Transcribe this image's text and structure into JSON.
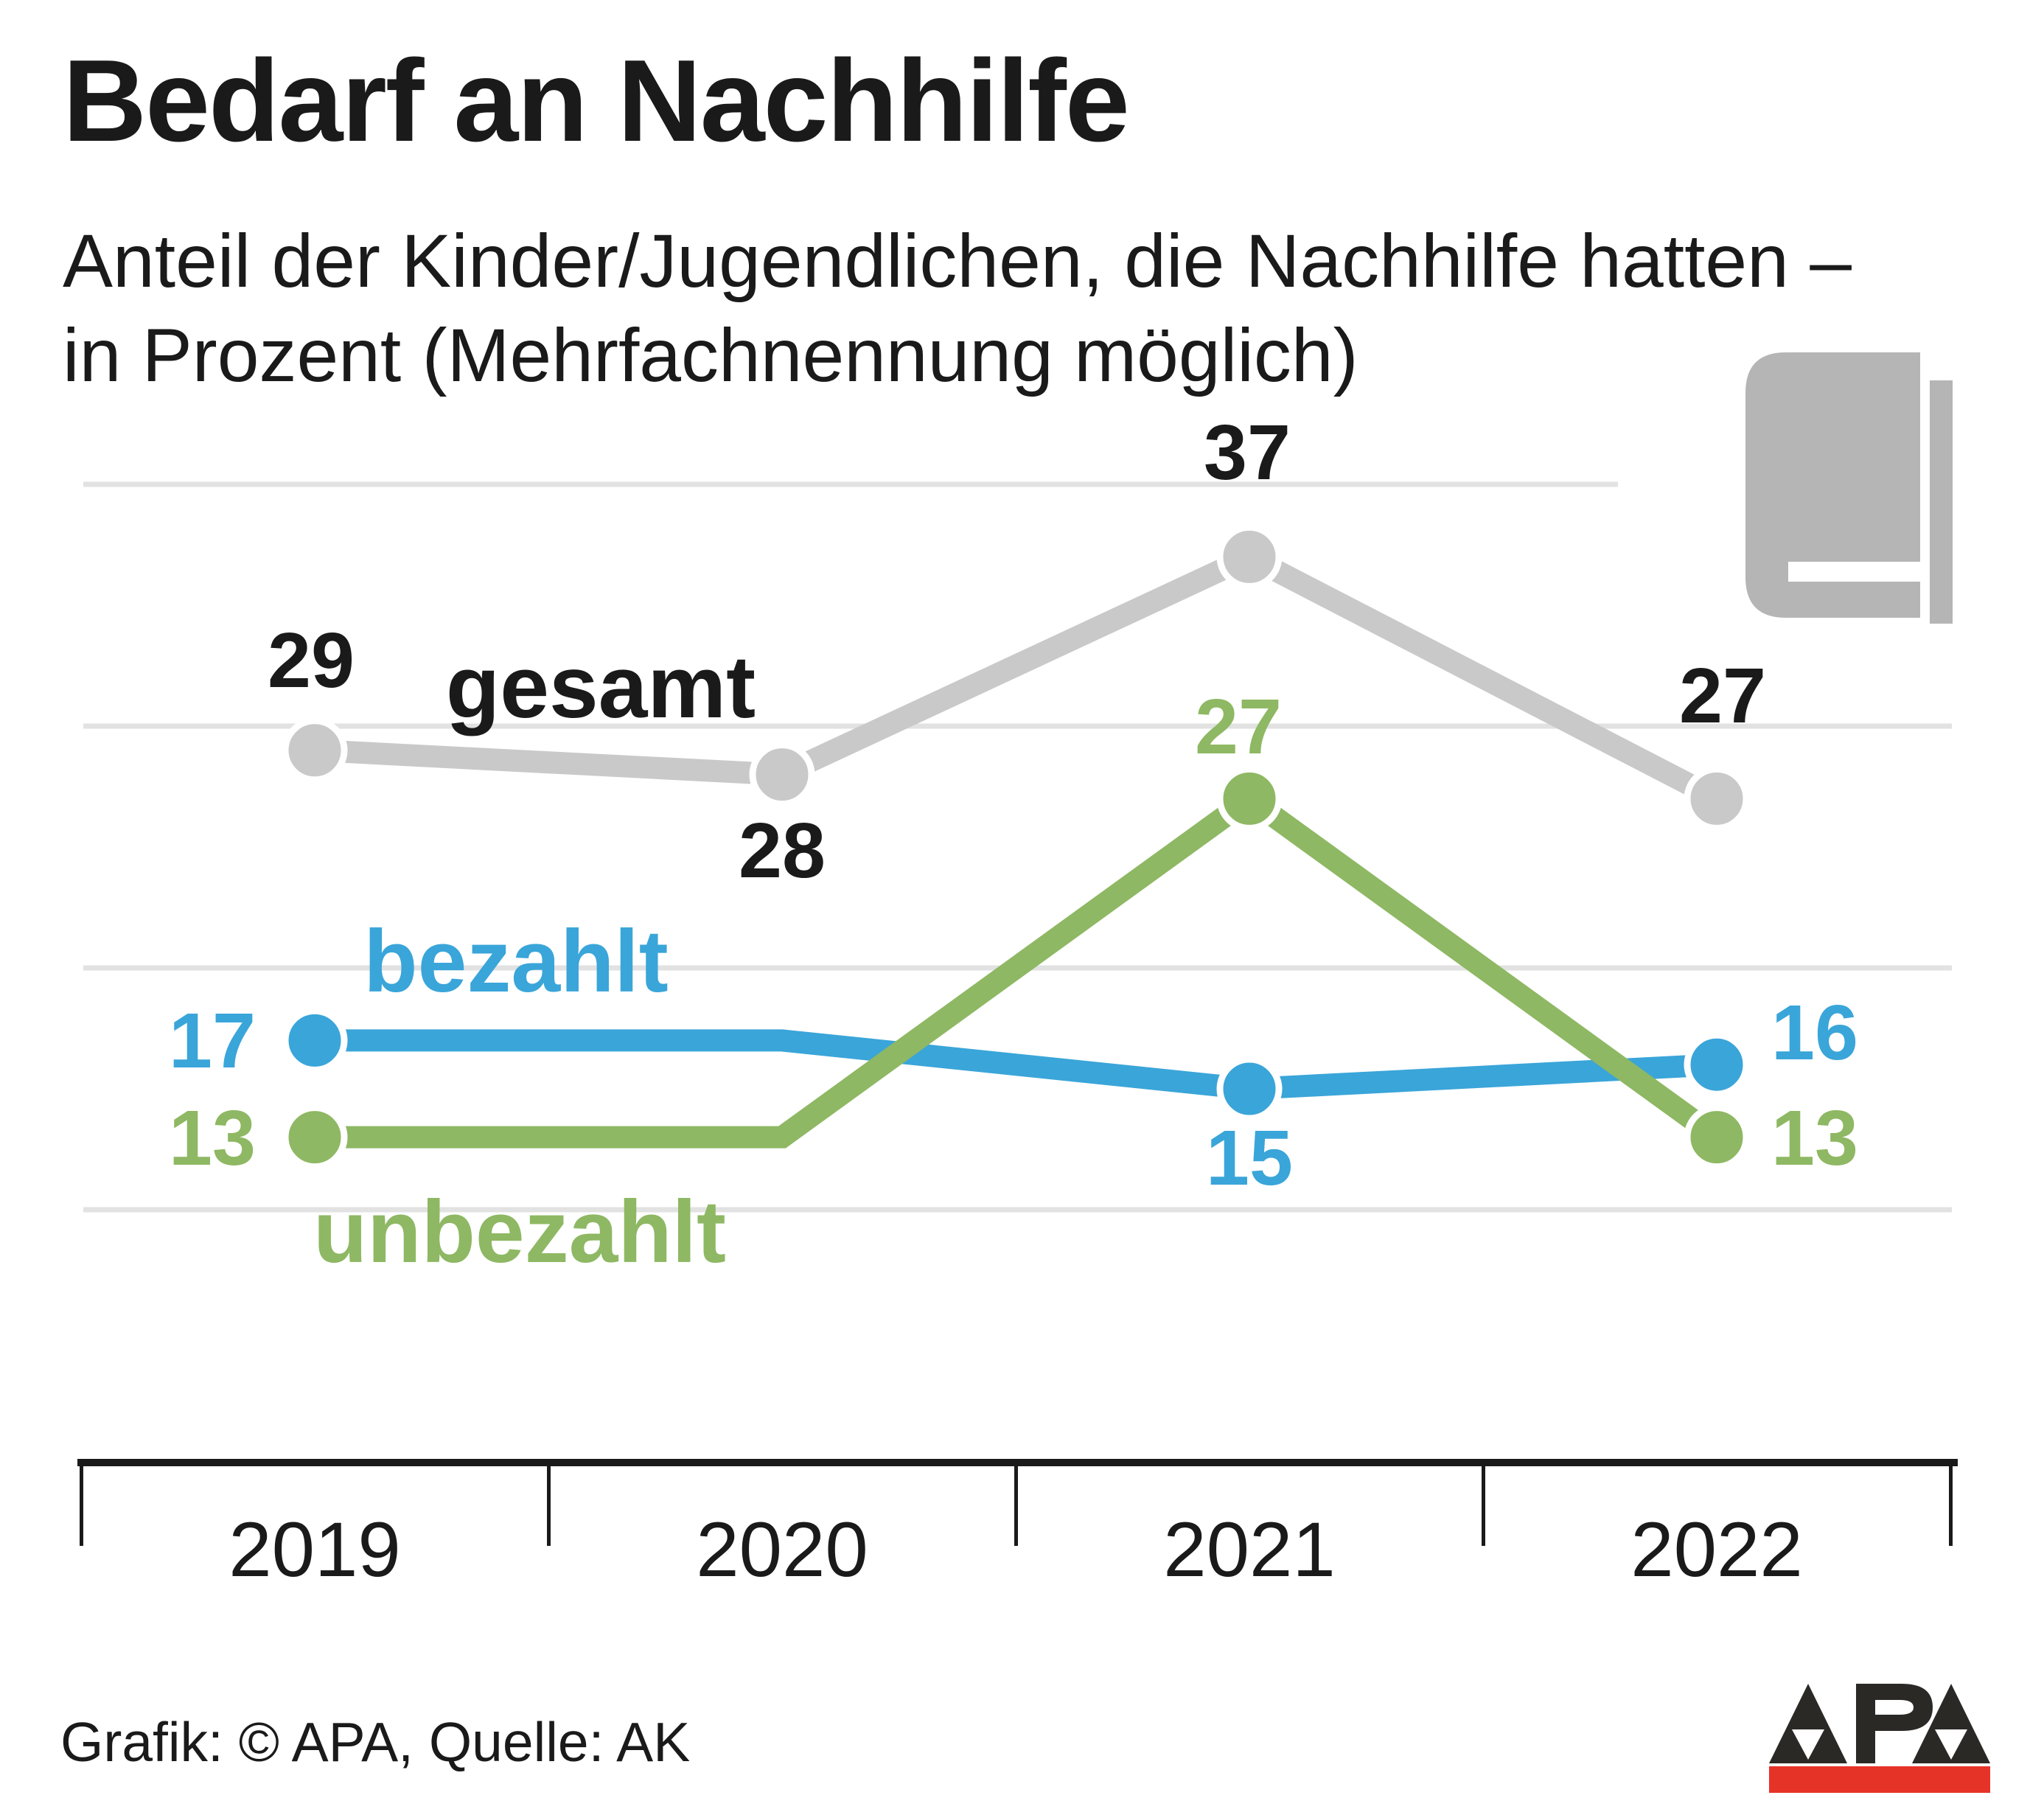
{
  "header": {
    "title": "Bedarf an Nachhilfe",
    "subtitle_lines": [
      "Anteil der Kinder/Jugendlichen, die Nachhilfe hatten –",
      "in Prozent (Mehrfachnennung möglich)"
    ]
  },
  "footer": {
    "credit": "Grafik: © APA, Quelle: AK",
    "logo_text": "APA"
  },
  "icons": {
    "book_icon": "book-icon",
    "book_icon_color": "#b5b5b5",
    "apa_logo_dark": "#2b2925",
    "apa_logo_red": "#e63328"
  },
  "colors": {
    "gesamt_gray": "#c9c9c9",
    "bezahlt_blue": "#3aa5d9",
    "unbezahlt_green": "#8eb863",
    "gridline": "#e2e2e2",
    "axis_black": "#1a1a1a",
    "text_black": "#1a1a1a"
  },
  "chart_data": {
    "type": "line",
    "title": "Bedarf an Nachhilfe",
    "subtitle": "Anteil der Kinder/Jugendlichen, die Nachhilfe hatten – in Prozent (Mehrfachnennung möglich)",
    "categories": [
      "2019",
      "2020",
      "2021",
      "2022"
    ],
    "series": [
      {
        "name": "gesamt",
        "color": "#c9c9c9",
        "label_color": "#1a1a1a",
        "values": [
          29,
          28,
          37,
          27
        ],
        "point_shown": [
          true,
          true,
          true,
          true
        ],
        "label_shown": [
          true,
          true,
          true,
          true
        ]
      },
      {
        "name": "bezahlt",
        "color": "#3aa5d9",
        "label_color": "#3aa5d9",
        "values": [
          17,
          17,
          15,
          16
        ],
        "point_shown": [
          true,
          false,
          true,
          true
        ],
        "label_shown": [
          true,
          false,
          true,
          true
        ]
      },
      {
        "name": "unbezahlt",
        "color": "#8eb863",
        "label_color": "#8eb863",
        "values": [
          13,
          13,
          27,
          13
        ],
        "point_shown": [
          true,
          false,
          true,
          true
        ],
        "label_shown": [
          true,
          false,
          true,
          true
        ]
      }
    ],
    "gridline_values": [
      10,
      20,
      30,
      40
    ],
    "y_axis_tick_labels_shown": false,
    "ylim": [
      5,
      42
    ],
    "xlabel": "",
    "ylabel": "",
    "legend_position": "inline-annotations"
  }
}
